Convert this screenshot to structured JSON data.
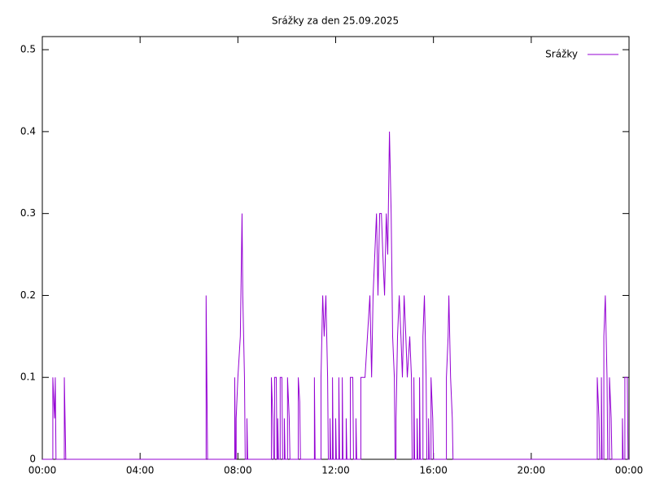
{
  "chart_data": {
    "type": "line",
    "title": "Srážky za den 25.09.2025",
    "xlim": [
      0,
      24
    ],
    "ylim": [
      0,
      0.516
    ],
    "xticks": [
      {
        "value": 0,
        "label": "00:00"
      },
      {
        "value": 4,
        "label": "04:00"
      },
      {
        "value": 8,
        "label": "08:00"
      },
      {
        "value": 12,
        "label": "12:00"
      },
      {
        "value": 16,
        "label": "16:00"
      },
      {
        "value": 20,
        "label": "20:00"
      },
      {
        "value": 24,
        "label": "00:00"
      }
    ],
    "yticks": [
      0,
      0.1,
      0.2,
      0.3,
      0.4,
      0.5
    ],
    "grid": false,
    "legend": "top-right",
    "x": [
      0,
      0.43,
      0.43,
      0.5,
      0.53,
      0.56,
      0.9,
      0.9,
      0.93,
      0.96,
      6.7,
      6.7,
      6.73,
      6.76,
      7.87,
      7.87,
      7.9,
      7.93,
      7.93,
      8.0,
      8.1,
      8.17,
      8.2,
      8.27,
      8.3,
      8.37,
      8.37,
      8.4,
      9.37,
      9.37,
      9.43,
      9.46,
      9.5,
      9.5,
      9.57,
      9.6,
      9.63,
      9.63,
      9.66,
      9.73,
      9.73,
      9.8,
      9.83,
      9.9,
      9.9,
      9.93,
      10.03,
      10.03,
      10.1,
      10.13,
      10.47,
      10.47,
      10.53,
      10.56,
      11.13,
      11.13,
      11.16,
      11.4,
      11.4,
      11.47,
      11.53,
      11.6,
      11.67,
      11.7,
      11.77,
      11.77,
      11.8,
      11.87,
      11.87,
      11.9,
      12.0,
      12.0,
      12.03,
      12.13,
      12.13,
      12.16,
      12.27,
      12.27,
      12.3,
      12.43,
      12.43,
      12.46,
      12.6,
      12.6,
      12.7,
      12.73,
      12.83,
      12.83,
      12.86,
      13.03,
      13.03,
      13.13,
      13.2,
      13.3,
      13.4,
      13.47,
      13.53,
      13.6,
      13.67,
      13.73,
      13.8,
      13.87,
      13.93,
      14.0,
      14.07,
      14.13,
      14.2,
      14.27,
      14.33,
      14.4,
      14.43,
      14.47,
      14.47,
      14.53,
      14.6,
      14.67,
      14.73,
      14.8,
      14.87,
      14.93,
      15.03,
      15.1,
      15.13,
      15.2,
      15.2,
      15.23,
      15.33,
      15.33,
      15.36,
      15.43,
      15.43,
      15.46,
      15.57,
      15.57,
      15.63,
      15.7,
      15.73,
      15.8,
      15.8,
      15.83,
      15.9,
      15.9,
      15.97,
      16.0,
      16.53,
      16.53,
      16.6,
      16.63,
      16.7,
      16.77,
      16.8,
      22.7,
      22.7,
      22.77,
      22.8,
      22.87,
      22.87,
      22.9,
      22.97,
      22.97,
      23.03,
      23.1,
      23.13,
      23.2,
      23.2,
      23.27,
      23.3,
      23.73,
      23.73,
      23.76,
      23.83,
      23.83,
      23.93,
      23.96,
      24
    ],
    "series": [
      {
        "name": "Srážky",
        "color": "#9400d3",
        "values": [
          0,
          0,
          0.1,
          0.05,
          0.1,
          0,
          0,
          0.1,
          0.05,
          0,
          0,
          0.2,
          0.1,
          0,
          0,
          0.1,
          0,
          0,
          0.05,
          0.1,
          0.15,
          0.3,
          0.2,
          0.1,
          0,
          0,
          0.05,
          0,
          0,
          0.1,
          0.05,
          0,
          0,
          0.1,
          0.1,
          0,
          0,
          0.05,
          0,
          0,
          0.1,
          0.1,
          0,
          0,
          0.05,
          0,
          0,
          0.1,
          0.05,
          0,
          0,
          0.1,
          0.07,
          0,
          0,
          0.1,
          0,
          0,
          0.1,
          0.2,
          0.15,
          0.2,
          0.1,
          0,
          0,
          0.05,
          0,
          0,
          0.1,
          0,
          0,
          0.05,
          0,
          0,
          0.1,
          0,
          0,
          0.1,
          0,
          0,
          0.05,
          0,
          0,
          0.1,
          0.1,
          0,
          0,
          0.05,
          0,
          0,
          0.1,
          0.1,
          0.1,
          0.15,
          0.2,
          0.1,
          0.2,
          0.25,
          0.3,
          0.2,
          0.3,
          0.3,
          0.25,
          0.2,
          0.3,
          0.25,
          0.4,
          0.3,
          0.15,
          0.1,
          0,
          0,
          0.05,
          0.15,
          0.2,
          0.15,
          0.1,
          0.2,
          0.15,
          0.1,
          0.15,
          0.1,
          0,
          0,
          0.1,
          0,
          0,
          0.05,
          0,
          0,
          0.1,
          0,
          0,
          0.15,
          0.2,
          0.1,
          0,
          0,
          0.05,
          0,
          0,
          0.1,
          0.05,
          0,
          0,
          0.1,
          0.15,
          0.2,
          0.1,
          0.05,
          0,
          0,
          0.1,
          0.05,
          0,
          0,
          0.1,
          0,
          0,
          0.15,
          0.2,
          0.1,
          0,
          0,
          0.1,
          0.05,
          0,
          0,
          0.05,
          0,
          0,
          0.1,
          0.1,
          0,
          0
        ]
      }
    ]
  }
}
